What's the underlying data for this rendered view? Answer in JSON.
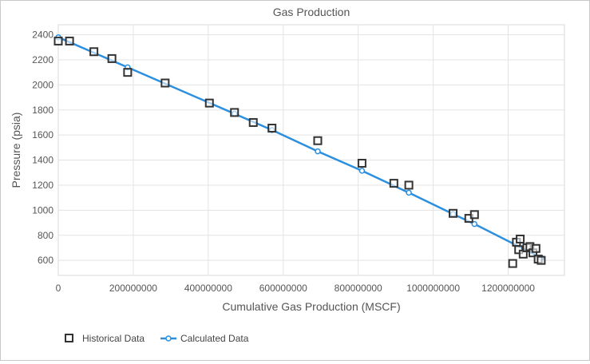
{
  "chart_data": {
    "type": "scatter",
    "title": "Gas Production",
    "xlabel": "Cumulative Gas Production (MSCF)",
    "ylabel": "Pressure (psia)",
    "xlim": [
      0,
      1350000000
    ],
    "ylim": [
      480,
      2480
    ],
    "x_ticks": [
      0,
      200000000,
      400000000,
      600000000,
      800000000,
      1000000000,
      1200000000
    ],
    "x_tick_labels": [
      "0",
      "200000000",
      "400000000",
      "600000000",
      "800000000",
      "1000000000",
      "1200000000"
    ],
    "y_ticks": [
      600,
      800,
      1000,
      1200,
      1400,
      1600,
      1800,
      2000,
      2200,
      2400
    ],
    "y_tick_labels": [
      "600",
      "800",
      "1000",
      "1200",
      "1400",
      "1600",
      "1800",
      "2000",
      "2200",
      "2400"
    ],
    "grid": true,
    "legend_position": "bottom-left",
    "series": [
      {
        "name": "Historical Data",
        "marker": "square",
        "color": "#333333",
        "points": [
          [
            0,
            2350
          ],
          [
            30000000,
            2350
          ],
          [
            95000000,
            2265
          ],
          [
            143000000,
            2210
          ],
          [
            185000000,
            2100
          ],
          [
            285000000,
            2015
          ],
          [
            403000000,
            1855
          ],
          [
            470000000,
            1780
          ],
          [
            520000000,
            1700
          ],
          [
            570000000,
            1655
          ],
          [
            692000000,
            1555
          ],
          [
            810000000,
            1375
          ],
          [
            895000000,
            1215
          ],
          [
            935000000,
            1200
          ],
          [
            1053000000,
            975
          ],
          [
            1095000000,
            935
          ],
          [
            1110000000,
            965
          ],
          [
            1212000000,
            575
          ],
          [
            1222000000,
            745
          ],
          [
            1232000000,
            770
          ],
          [
            1228000000,
            685
          ],
          [
            1240000000,
            650
          ],
          [
            1250000000,
            700
          ],
          [
            1258000000,
            710
          ],
          [
            1266000000,
            660
          ],
          [
            1274000000,
            695
          ],
          [
            1280000000,
            610
          ],
          [
            1288000000,
            600
          ]
        ]
      },
      {
        "name": "Calculated Data",
        "marker": "circle",
        "color": "#2b8fe0",
        "points": [
          [
            0,
            2380
          ],
          [
            185000000,
            2140
          ],
          [
            470000000,
            1770
          ],
          [
            570000000,
            1640
          ],
          [
            692000000,
            1470
          ],
          [
            810000000,
            1315
          ],
          [
            935000000,
            1140
          ],
          [
            1053000000,
            970
          ],
          [
            1110000000,
            890
          ],
          [
            1288000000,
            620
          ]
        ]
      }
    ]
  }
}
